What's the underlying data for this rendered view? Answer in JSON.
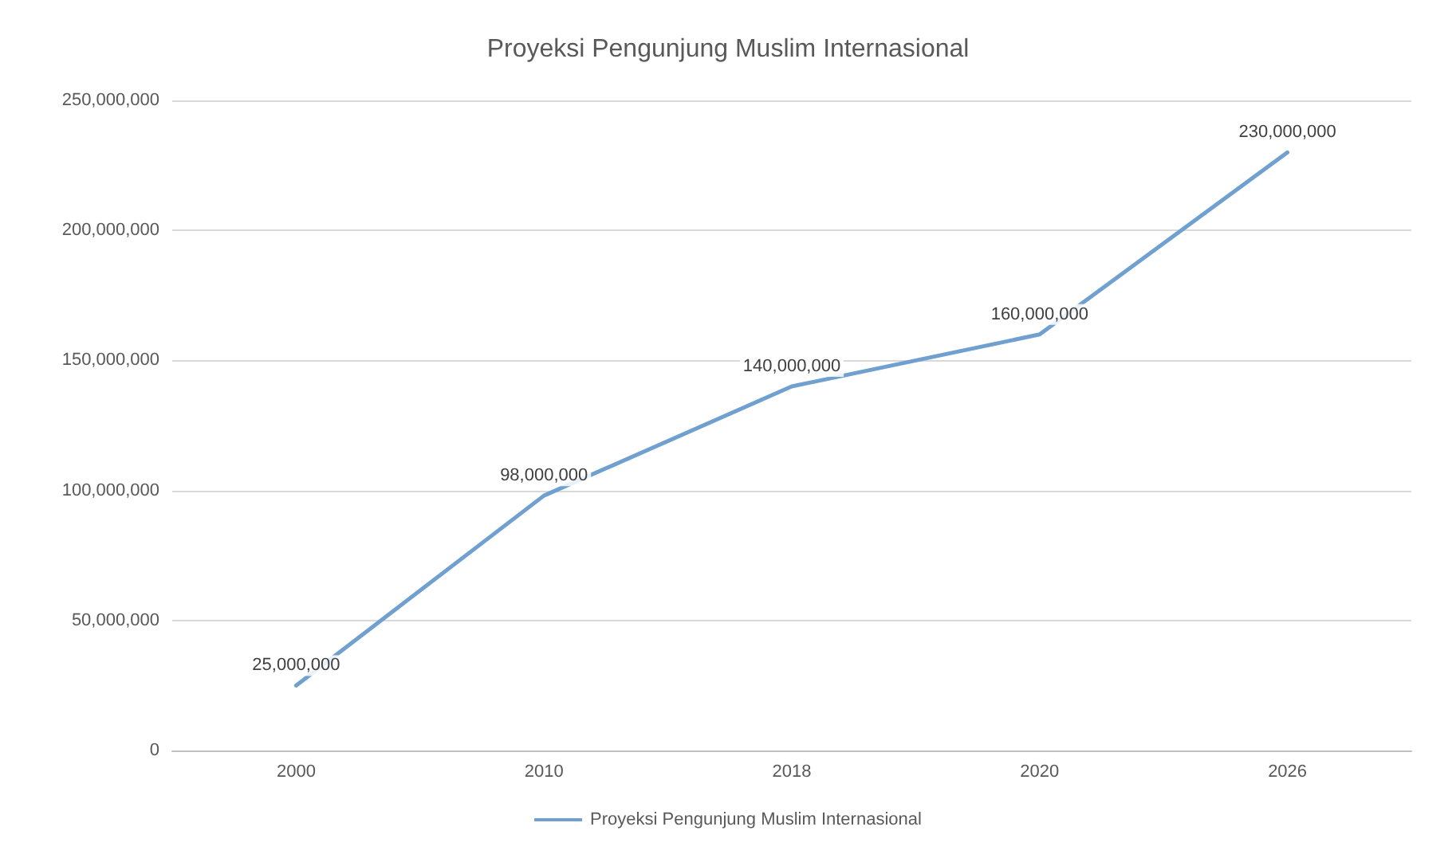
{
  "chart_data": {
    "type": "line",
    "title": "Proyeksi Pengunjung Muslim Internasional",
    "categories": [
      "2000",
      "2010",
      "2018",
      "2020",
      "2026"
    ],
    "series": [
      {
        "name": "Proyeksi Pengunjung Muslim Internasional",
        "color": "#6fa0d0",
        "values": [
          25000000,
          98000000,
          140000000,
          160000000,
          230000000
        ],
        "value_labels": [
          "25,000,000",
          "98,000,000",
          "140,000,000",
          "160,000,000",
          "230,000,000"
        ]
      }
    ],
    "ylim": [
      0,
      250000000
    ],
    "yticks": [
      {
        "value": 0,
        "label": "0"
      },
      {
        "value": 50000000,
        "label": "50,000,000"
      },
      {
        "value": 100000000,
        "label": "100,000,000"
      },
      {
        "value": 150000000,
        "label": "150,000,000"
      },
      {
        "value": 200000000,
        "label": "200,000,000"
      },
      {
        "value": 250000000,
        "label": "250,000,000"
      }
    ],
    "grid": "y",
    "legend": "bottom",
    "marker": "none",
    "line_style": "solid"
  }
}
